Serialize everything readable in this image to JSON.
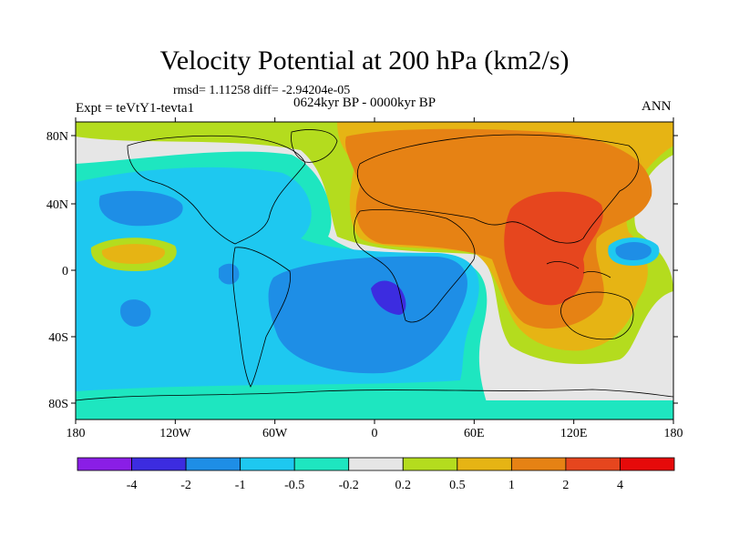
{
  "title": "Velocity Potential at 200 hPa (km2/s)",
  "stats_line": "rmsd= 1.11258 diff= -2.94204e-05",
  "left_label": "Expt = teVtY1-tevta1",
  "center_label": "0624kyr BP - 0000kyr BP",
  "right_label": "ANN",
  "x_ticks": [
    "180",
    "120W",
    "60W",
    "0",
    "60E",
    "120E",
    "180"
  ],
  "y_ticks": [
    "80N",
    "40N",
    "0",
    "40S",
    "80S"
  ],
  "colorbar": {
    "colors": [
      "#8a1ee6",
      "#3c2ce0",
      "#1e8ee6",
      "#1ec8f0",
      "#1ee6c0",
      "#e6e6e6",
      "#b4dc1e",
      "#e6b414",
      "#e68214",
      "#e6461e",
      "#e60a0a"
    ],
    "labels": [
      "-4",
      "-2",
      "-1",
      "-0.5",
      "-0.2",
      "0.2",
      "0.5",
      "1",
      "2",
      "4"
    ]
  }
}
